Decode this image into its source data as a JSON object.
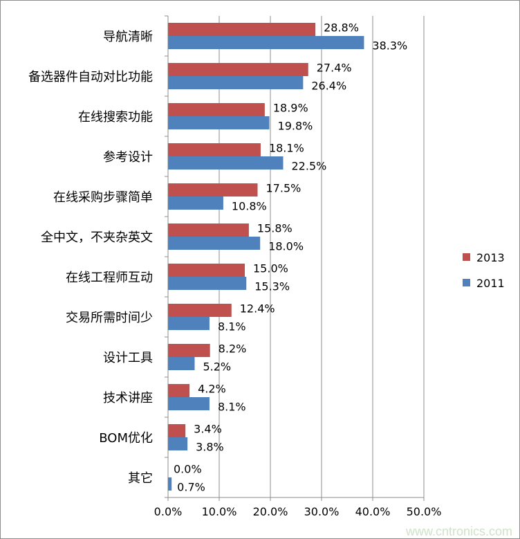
{
  "chart_data": {
    "type": "bar",
    "orientation": "horizontal",
    "categories": [
      "导航清晰",
      "备选器件自动对比功能",
      "在线搜索功能",
      "参考设计",
      "在线采购步骤简单",
      "全中文，不夹杂英文",
      "在线工程师互动",
      "交易所需时间少",
      "设计工具",
      "技术讲座",
      "BOM优化",
      "其它"
    ],
    "series": [
      {
        "name": "2013",
        "color": "#c0504d",
        "values": [
          28.8,
          27.4,
          18.9,
          18.1,
          17.5,
          15.8,
          15.0,
          12.4,
          8.2,
          4.2,
          3.4,
          0.0
        ],
        "labels": [
          "28.8%",
          "27.4%",
          "18.9%",
          "18.1%",
          "17.5%",
          "15.8%",
          "15.0%",
          "12.4%",
          "8.2%",
          "4.2%",
          "3.4%",
          "0.0%"
        ]
      },
      {
        "name": "2011",
        "color": "#4f81bd",
        "values": [
          38.3,
          26.4,
          19.8,
          22.5,
          10.8,
          18.0,
          15.3,
          8.1,
          5.2,
          8.1,
          3.8,
          0.7
        ],
        "labels": [
          "38.3%",
          "26.4%",
          "19.8%",
          "22.5%",
          "10.8%",
          "18.0%",
          "15.3%",
          "8.1%",
          "5.2%",
          "8.1%",
          "3.8%",
          "0.7%"
        ]
      }
    ],
    "xlim": [
      0,
      50
    ],
    "xticks": [
      "0.0%",
      "10.0%",
      "20.0%",
      "30.0%",
      "40.0%",
      "50.0%"
    ],
    "grid": "vertical",
    "legend": "right",
    "title": "",
    "xlabel": "",
    "ylabel": ""
  },
  "watermark": "www.cntronics.com"
}
